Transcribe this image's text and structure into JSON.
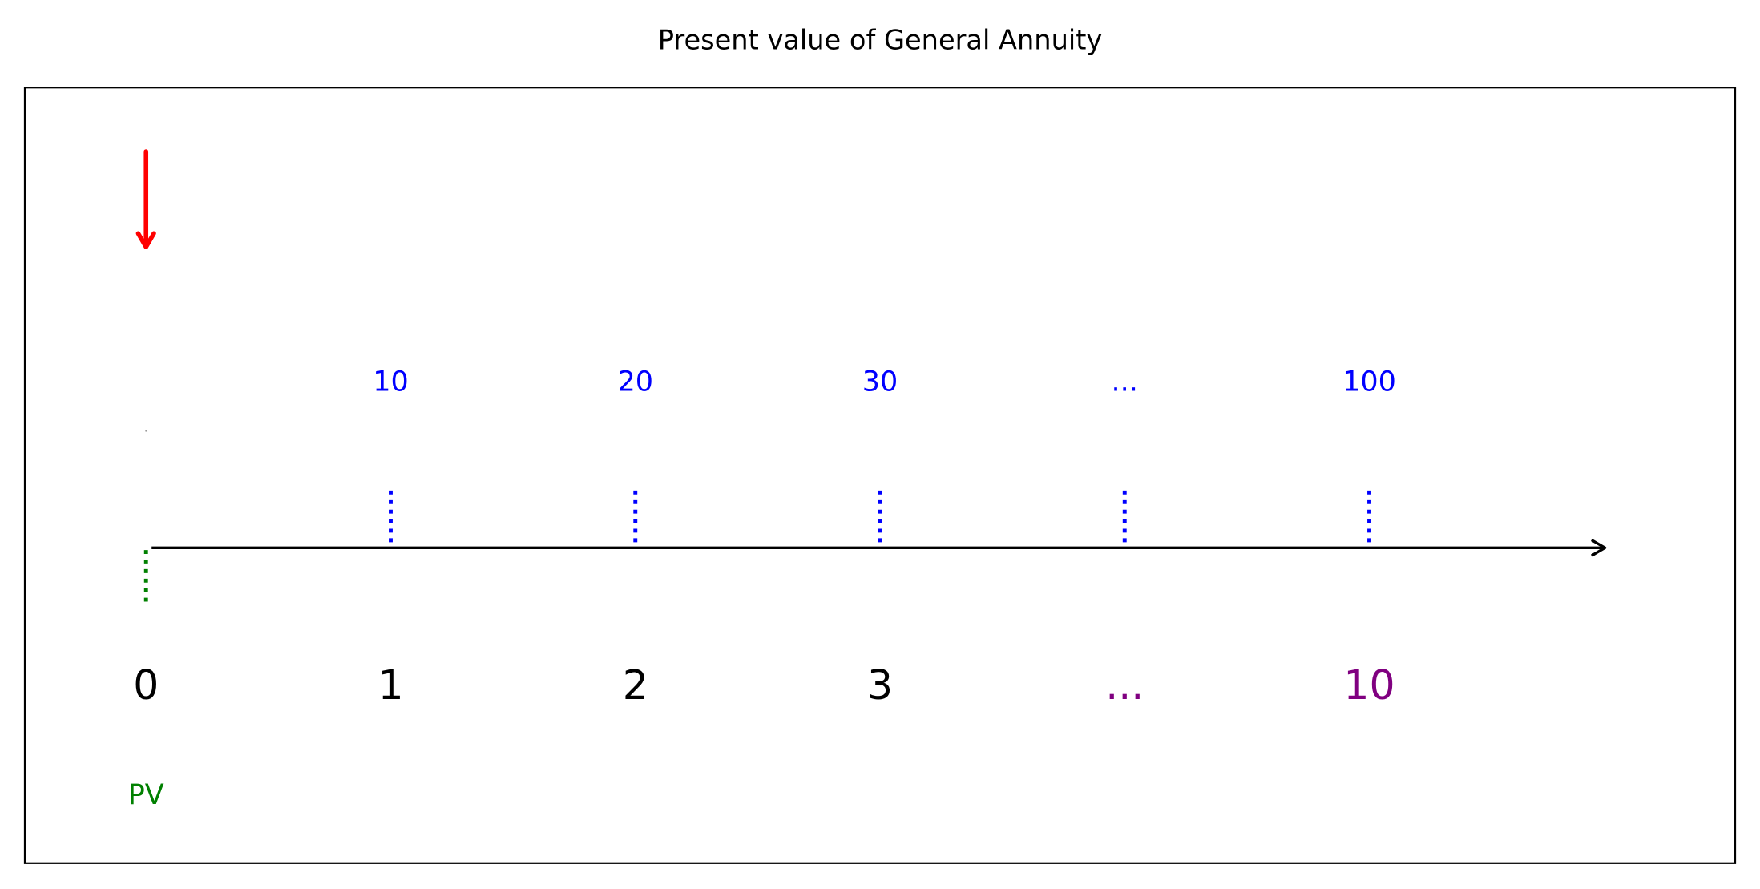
{
  "title": "Present value of General Annuity",
  "periods": [
    "0",
    "1",
    "2",
    "3",
    "...",
    "10"
  ],
  "payments": [
    "10",
    "20",
    "30",
    "...",
    "100"
  ],
  "pv_label": "PV"
}
